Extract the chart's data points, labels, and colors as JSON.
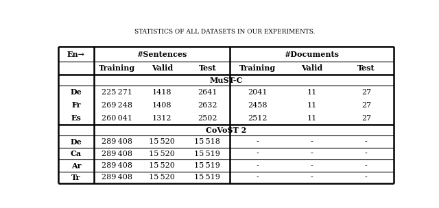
{
  "title": "Statistics of all datasets in our experiments.",
  "section1_label": "MuST-C",
  "section2_label": "CoVoST 2",
  "rows_mustc": [
    [
      "De",
      "225 271",
      "1418",
      "2641",
      "2041",
      "11",
      "27"
    ],
    [
      "Fr",
      "269 248",
      "1408",
      "2632",
      "2458",
      "11",
      "27"
    ],
    [
      "Es",
      "260 041",
      "1312",
      "2502",
      "2512",
      "11",
      "27"
    ]
  ],
  "rows_covost": [
    [
      "De",
      "289 408",
      "15 520",
      "15 518",
      "-",
      "-",
      "-"
    ],
    [
      "Ca",
      "289 408",
      "15 520",
      "15 519",
      "-",
      "-",
      "-"
    ],
    [
      "Ar",
      "289 408",
      "15 520",
      "15 519",
      "-",
      "-",
      "-"
    ],
    [
      "Tr",
      "289 408",
      "15 520",
      "15 519",
      "-",
      "-",
      "-"
    ]
  ],
  "bg_color": "#ffffff",
  "line_color": "#000000",
  "figsize": [
    6.4,
    3.04
  ],
  "dpi": 100
}
